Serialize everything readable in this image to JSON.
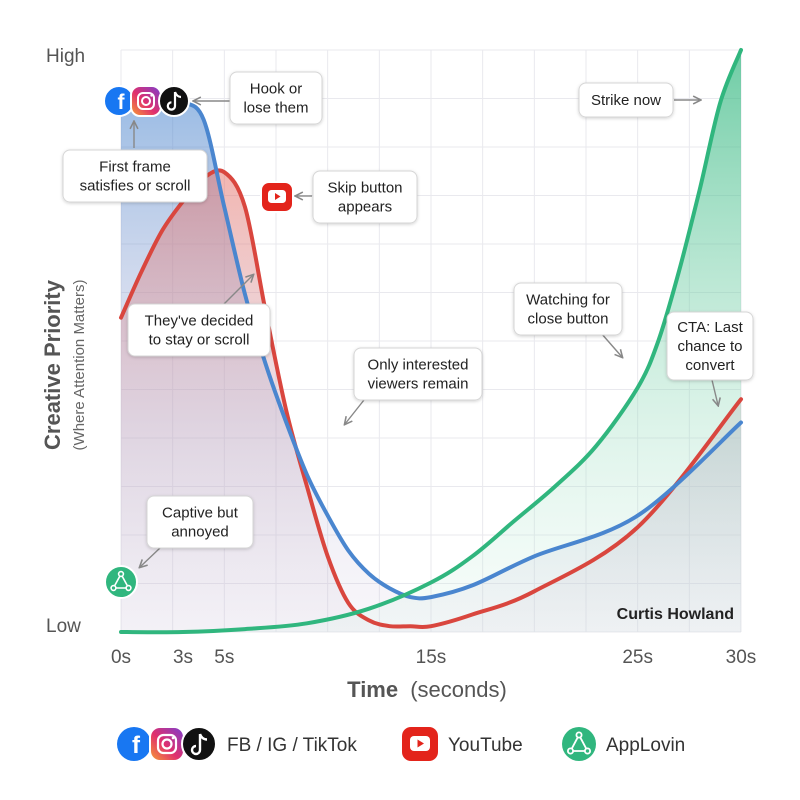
{
  "chart_data": {
    "type": "line",
    "title": "",
    "ylabel": "Creative Priority",
    "ylabel_sub": "(Where Attention Matters)",
    "xlabel": "Time",
    "xlabel_unit": "(seconds)",
    "x_ticks": [
      "0s",
      "3s",
      "5s",
      "15s",
      "25s",
      "30s"
    ],
    "y_ticks": [
      "High",
      "Low"
    ],
    "xlim": [
      0,
      30
    ],
    "ylim": [
      0,
      100
    ],
    "grid": true,
    "watermark": "Curtis Howland",
    "series": [
      {
        "name": "FB / IG / TikTok",
        "color": "#4a86cf",
        "x": [
          0,
          1,
          2,
          3,
          4,
          5,
          6,
          7,
          8,
          9,
          10,
          11,
          12,
          13,
          14,
          15,
          17,
          20,
          25,
          30
        ],
        "y": [
          91,
          91,
          91,
          91,
          88,
          73,
          58,
          46,
          36,
          27,
          20,
          14,
          10,
          7.5,
          6,
          6,
          8,
          13,
          20,
          36
        ]
      },
      {
        "name": "YouTube",
        "color": "#d9463e",
        "x": [
          0,
          1,
          2,
          3,
          4,
          5,
          6,
          7,
          8,
          9,
          10,
          11,
          12,
          13,
          14,
          15,
          17,
          20,
          25,
          30
        ],
        "y": [
          54,
          62,
          69,
          74,
          78,
          79,
          73,
          55,
          38,
          25,
          13,
          5,
          2,
          1,
          1,
          1,
          3,
          7,
          18,
          40
        ]
      },
      {
        "name": "AppLovin",
        "color": "#30b67e",
        "x": [
          0,
          3,
          6,
          9,
          12,
          15,
          17,
          19,
          21,
          23,
          25,
          26,
          27,
          28,
          29,
          30
        ],
        "y": [
          0,
          0,
          0.5,
          1.5,
          4,
          8.5,
          13,
          19,
          25,
          32,
          42,
          50,
          62,
          76,
          91,
          100
        ]
      }
    ],
    "annotations": [
      {
        "lines": [
          "Hook or",
          "lose them"
        ]
      },
      {
        "lines": [
          "First frame",
          "satisfies or scroll"
        ]
      },
      {
        "lines": [
          "Skip button",
          "appears"
        ]
      },
      {
        "lines": [
          "They've decided",
          "to stay or scroll"
        ]
      },
      {
        "lines": [
          "Only interested",
          "viewers remain"
        ]
      },
      {
        "lines": [
          "Captive but",
          "annoyed"
        ]
      },
      {
        "lines": [
          "Strike now"
        ]
      },
      {
        "lines": [
          "Watching for",
          "close button"
        ]
      },
      {
        "lines": [
          "CTA: Last",
          "chance to",
          "convert"
        ]
      }
    ],
    "legend": [
      {
        "label": "FB / IG / TikTok",
        "icons": [
          "facebook-icon",
          "instagram-icon",
          "tiktok-icon"
        ]
      },
      {
        "label": "YouTube",
        "icons": [
          "youtube-icon"
        ]
      },
      {
        "label": "AppLovin",
        "icons": [
          "applovin-icon"
        ]
      }
    ]
  }
}
